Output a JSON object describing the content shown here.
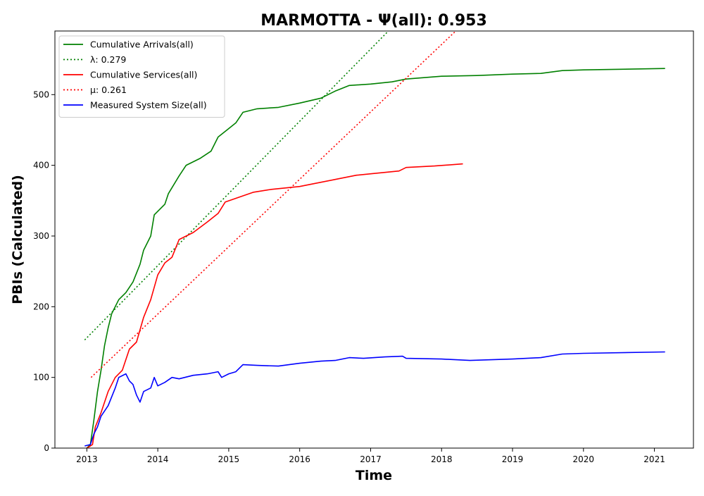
{
  "chart_data": {
    "type": "line",
    "title": "MARMOTTA -  Ψ(all): 0.953",
    "xlabel": "Time",
    "ylabel": "PBIs (Calculated)",
    "xlim": [
      2012.55,
      2021.55
    ],
    "ylim": [
      0,
      590
    ],
    "x_ticks": [
      2013,
      2014,
      2015,
      2016,
      2017,
      2018,
      2019,
      2020,
      2021
    ],
    "y_ticks": [
      0,
      100,
      200,
      300,
      400,
      500
    ],
    "grid": false,
    "legend_position": "top-left",
    "series": [
      {
        "name": "Cumulative Arrivals(all)",
        "color": "#008000",
        "style": "solid",
        "points": [
          [
            2013.0,
            0
          ],
          [
            2013.05,
            5
          ],
          [
            2013.1,
            40
          ],
          [
            2013.15,
            80
          ],
          [
            2013.2,
            110
          ],
          [
            2013.25,
            145
          ],
          [
            2013.3,
            170
          ],
          [
            2013.35,
            190
          ],
          [
            2013.45,
            210
          ],
          [
            2013.55,
            220
          ],
          [
            2013.65,
            235
          ],
          [
            2013.75,
            260
          ],
          [
            2013.8,
            280
          ],
          [
            2013.9,
            300
          ],
          [
            2013.95,
            330
          ],
          [
            2014.1,
            345
          ],
          [
            2014.15,
            360
          ],
          [
            2014.3,
            385
          ],
          [
            2014.4,
            400
          ],
          [
            2014.6,
            410
          ],
          [
            2014.75,
            420
          ],
          [
            2014.85,
            440
          ],
          [
            2015.0,
            452
          ],
          [
            2015.1,
            460
          ],
          [
            2015.2,
            475
          ],
          [
            2015.4,
            480
          ],
          [
            2015.7,
            482
          ],
          [
            2016.0,
            488
          ],
          [
            2016.3,
            495
          ],
          [
            2016.5,
            505
          ],
          [
            2016.7,
            513
          ],
          [
            2017.0,
            515
          ],
          [
            2017.3,
            518
          ],
          [
            2017.5,
            522
          ],
          [
            2018.0,
            526
          ],
          [
            2018.5,
            527
          ],
          [
            2019.0,
            529
          ],
          [
            2019.4,
            530
          ],
          [
            2019.7,
            534
          ],
          [
            2020.0,
            535
          ],
          [
            2021.15,
            537
          ]
        ]
      },
      {
        "name": "λ: 0.279",
        "color": "#008000",
        "style": "dotted",
        "points": [
          [
            2012.97,
            153
          ],
          [
            2017.25,
            590
          ]
        ]
      },
      {
        "name": "Cumulative Services(all)",
        "color": "#ff0000",
        "style": "solid",
        "points": [
          [
            2013.0,
            0
          ],
          [
            2013.08,
            5
          ],
          [
            2013.12,
            30
          ],
          [
            2013.2,
            50
          ],
          [
            2013.3,
            80
          ],
          [
            2013.4,
            100
          ],
          [
            2013.5,
            110
          ],
          [
            2013.6,
            140
          ],
          [
            2013.7,
            150
          ],
          [
            2013.8,
            185
          ],
          [
            2013.9,
            210
          ],
          [
            2014.0,
            245
          ],
          [
            2014.1,
            262
          ],
          [
            2014.2,
            270
          ],
          [
            2014.3,
            295
          ],
          [
            2014.5,
            305
          ],
          [
            2014.7,
            320
          ],
          [
            2014.85,
            332
          ],
          [
            2014.95,
            348
          ],
          [
            2015.15,
            355
          ],
          [
            2015.35,
            362
          ],
          [
            2015.6,
            366
          ],
          [
            2016.0,
            370
          ],
          [
            2016.2,
            374
          ],
          [
            2016.5,
            380
          ],
          [
            2016.8,
            386
          ],
          [
            2017.0,
            388
          ],
          [
            2017.4,
            392
          ],
          [
            2017.5,
            397
          ],
          [
            2017.9,
            399
          ],
          [
            2018.3,
            402
          ]
        ]
      },
      {
        "name": "μ: 0.261",
        "color": "#ff0000",
        "style": "dotted",
        "points": [
          [
            2013.06,
            100
          ],
          [
            2018.2,
            590
          ]
        ]
      },
      {
        "name": "Measured System Size(all)",
        "color": "#0000ff",
        "style": "solid",
        "points": [
          [
            2012.97,
            3
          ],
          [
            2013.05,
            5
          ],
          [
            2013.1,
            20
          ],
          [
            2013.15,
            30
          ],
          [
            2013.2,
            45
          ],
          [
            2013.3,
            60
          ],
          [
            2013.4,
            85
          ],
          [
            2013.45,
            100
          ],
          [
            2013.55,
            105
          ],
          [
            2013.6,
            95
          ],
          [
            2013.65,
            90
          ],
          [
            2013.7,
            75
          ],
          [
            2013.75,
            65
          ],
          [
            2013.8,
            80
          ],
          [
            2013.9,
            85
          ],
          [
            2013.95,
            100
          ],
          [
            2014.0,
            88
          ],
          [
            2014.1,
            93
          ],
          [
            2014.2,
            100
          ],
          [
            2014.3,
            98
          ],
          [
            2014.5,
            103
          ],
          [
            2014.7,
            105
          ],
          [
            2014.85,
            108
          ],
          [
            2014.9,
            100
          ],
          [
            2015.0,
            105
          ],
          [
            2015.1,
            108
          ],
          [
            2015.2,
            118
          ],
          [
            2015.4,
            117
          ],
          [
            2015.7,
            116
          ],
          [
            2016.0,
            120
          ],
          [
            2016.3,
            123
          ],
          [
            2016.5,
            124
          ],
          [
            2016.7,
            128
          ],
          [
            2016.9,
            127
          ],
          [
            2017.2,
            129
          ],
          [
            2017.45,
            130
          ],
          [
            2017.5,
            127
          ],
          [
            2018.0,
            126
          ],
          [
            2018.4,
            124
          ],
          [
            2019.0,
            126
          ],
          [
            2019.4,
            128
          ],
          [
            2019.7,
            133
          ],
          [
            2020.0,
            134
          ],
          [
            2021.15,
            136
          ]
        ]
      }
    ]
  }
}
